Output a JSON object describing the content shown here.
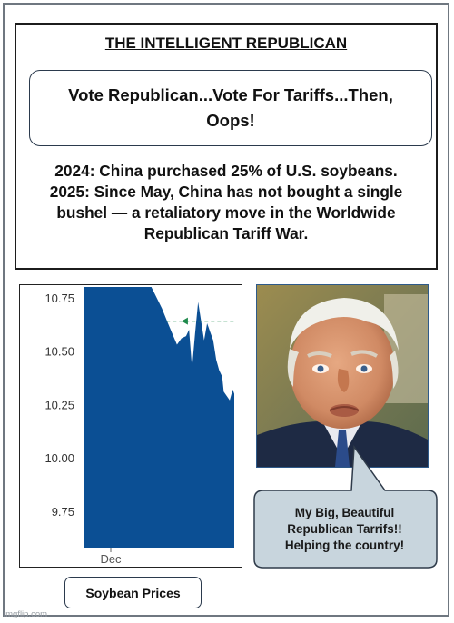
{
  "heading": "THE INTELLIGENT REPUBLICAN",
  "slogan": "Vote Republican...Vote For Tariffs...Then, Oops!",
  "facts_lines": [
    "2024: China purchased 25% of U.S. soybeans.",
    "2025: Since May, China has not bought a single",
    "bushel — a retaliatory move in the Worldwide",
    "Republican Tariff War."
  ],
  "speech_lines": [
    "My Big, Beautiful",
    "Republican Tarrifs!!",
    "Helping the country!"
  ],
  "caption": "Soybean Prices",
  "watermark": "imgflip.com",
  "colors": {
    "area_fill": "#0b4f94",
    "reference_line": "#1f8a4c",
    "bubble_fill": "#c8d5dd"
  },
  "chart_data": {
    "type": "area",
    "title": "",
    "xlabel": "",
    "ylabel": "",
    "x_tick_labels": [
      "Dec"
    ],
    "y_tick_labels": [
      "10.75",
      "10.50",
      "10.25",
      "10.00",
      "9.75"
    ],
    "y_ticks": [
      10.75,
      10.5,
      10.25,
      10.0,
      9.75
    ],
    "ylim": [
      9.58,
      10.8
    ],
    "xlim": [
      0,
      100
    ],
    "reference_value": 10.64,
    "series": [
      {
        "x": [
          0,
          45,
          52,
          56,
          59,
          62,
          65,
          68,
          70,
          72,
          74,
          76,
          78,
          80,
          82,
          83,
          84,
          86,
          88,
          90,
          92,
          93,
          95,
          97,
          99,
          100
        ],
        "values": [
          10.8,
          10.8,
          10.7,
          10.63,
          10.58,
          10.53,
          10.56,
          10.57,
          10.6,
          10.42,
          10.58,
          10.73,
          10.64,
          10.55,
          10.63,
          10.61,
          10.59,
          10.55,
          10.46,
          10.41,
          10.38,
          10.31,
          10.29,
          10.27,
          10.32,
          10.3
        ]
      }
    ],
    "grid": false
  }
}
